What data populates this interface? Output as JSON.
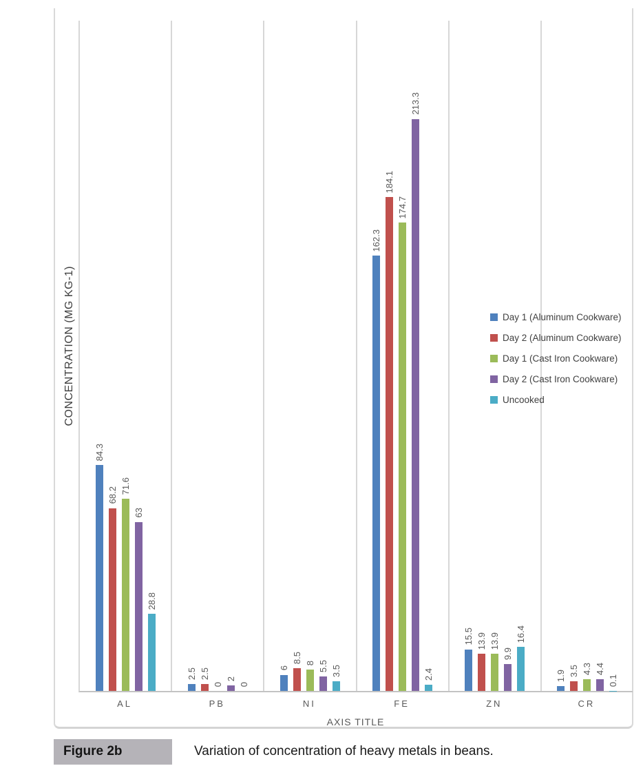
{
  "figure": {
    "label": "Figure 2b",
    "caption": "Variation of concentration of heavy metals in beans."
  },
  "chart_data": {
    "type": "bar",
    "title": "",
    "xlabel": "AXIS TITLE",
    "ylabel": "CONCENTRATION (MG KG-1)",
    "ylim": [
      0,
      250
    ],
    "grid": "vertical category separators only",
    "legend_position": "right-inside",
    "value_labels": "rotated 90deg above bars",
    "categories": [
      "AL",
      "PB",
      "NI",
      "FE",
      "ZN",
      "CR"
    ],
    "series": [
      {
        "name": "Day 1 (Aluminum Cookware)",
        "color": "#4F81BD",
        "values": [
          84.3,
          2.5,
          6,
          162.3,
          15.5,
          1.9
        ]
      },
      {
        "name": "Day 2 (Aluminum Cookware)",
        "color": "#C0504D",
        "values": [
          68.2,
          2.5,
          8.5,
          184.1,
          13.9,
          3.5
        ]
      },
      {
        "name": "Day  1 (Cast Iron Cookware)",
        "color": "#9BBB59",
        "values": [
          71.6,
          0,
          8,
          174.7,
          13.9,
          4.3
        ]
      },
      {
        "name": "Day  2 (Cast Iron Cookware)",
        "color": "#8064A2",
        "values": [
          63,
          2,
          5.5,
          213.3,
          9.9,
          4.4
        ]
      },
      {
        "name": "Uncooked",
        "color": "#4BACC6",
        "values": [
          28.8,
          0,
          3.5,
          2.4,
          16.4,
          0.1
        ]
      }
    ],
    "colors": {
      "gridline": "#d7d7d7",
      "baseline": "#c3c3c3",
      "frame_border": "#d9d9d9",
      "label_text": "#595959",
      "axis_title_text": "#3f3f3f",
      "legend_text": "#404040",
      "caption_badge_bg": "#b5b3b8"
    }
  }
}
